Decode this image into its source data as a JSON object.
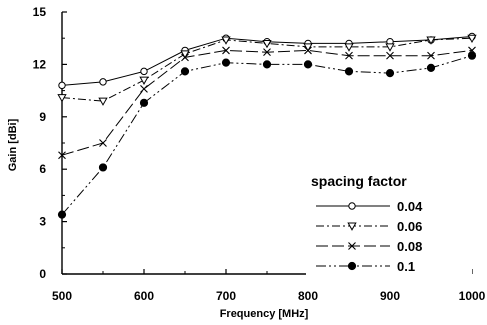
{
  "chart_data": {
    "type": "line",
    "title": "",
    "xlabel": "Frequency [MHz]",
    "ylabel": "Gain [dBi]",
    "x": [
      500,
      550,
      600,
      650,
      700,
      750,
      800,
      850,
      900,
      950,
      1000
    ],
    "xlim": [
      500,
      1000
    ],
    "ylim": [
      0,
      15
    ],
    "xticks": [
      500,
      600,
      700,
      800,
      900,
      1000
    ],
    "yticks": [
      0,
      3,
      6,
      9,
      12,
      15
    ],
    "grid": false,
    "legend_title": "spacing factor",
    "legend_position": "bottom-right",
    "series": [
      {
        "name": "0.04",
        "marker": "circle-open",
        "dash": "solid",
        "values": [
          10.8,
          11.0,
          11.6,
          12.8,
          13.5,
          13.3,
          13.2,
          13.2,
          13.3,
          13.4,
          13.6
        ]
      },
      {
        "name": "0.06",
        "marker": "triangle-down-open",
        "dash": "dashdot",
        "values": [
          10.1,
          9.9,
          11.1,
          12.6,
          13.4,
          13.2,
          13.0,
          13.0,
          13.0,
          13.4,
          13.5
        ]
      },
      {
        "name": "0.08",
        "marker": "x",
        "dash": "longdash",
        "values": [
          6.8,
          7.5,
          10.6,
          12.4,
          12.8,
          12.7,
          12.8,
          12.5,
          12.5,
          12.5,
          12.8
        ]
      },
      {
        "name": "0.1",
        "marker": "circle-filled",
        "dash": "dashdotdot",
        "values": [
          3.4,
          6.1,
          9.8,
          11.6,
          12.1,
          12.0,
          12.0,
          11.6,
          11.5,
          11.8,
          12.5
        ]
      }
    ]
  }
}
